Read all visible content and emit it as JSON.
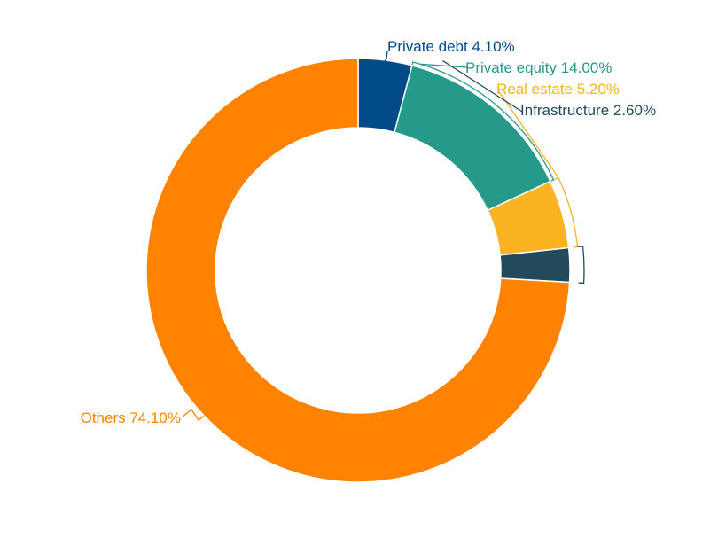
{
  "chart_data": {
    "type": "pie",
    "variant": "donut",
    "title": "",
    "slices": [
      {
        "label": "Private debt",
        "value": 4.1,
        "value_label": "4.10%",
        "color": "#004b87"
      },
      {
        "label": "Private equity",
        "value": 14.0,
        "value_label": "14.00%",
        "color": "#25998a"
      },
      {
        "label": "Real estate",
        "value": 5.2,
        "value_label": "5.20%",
        "color": "#fbb321"
      },
      {
        "label": "Infrastructure",
        "value": 2.6,
        "value_label": "2.60%",
        "color": "#224a5a"
      },
      {
        "label": "Others",
        "value": 74.1,
        "value_label": "74.10%",
        "color": "#ff8300"
      }
    ],
    "start_angle_deg": 0,
    "direction": "clockwise",
    "legend": "none"
  },
  "colors": {
    "background": "#ffffff",
    "slice_border": "#ffffff"
  }
}
